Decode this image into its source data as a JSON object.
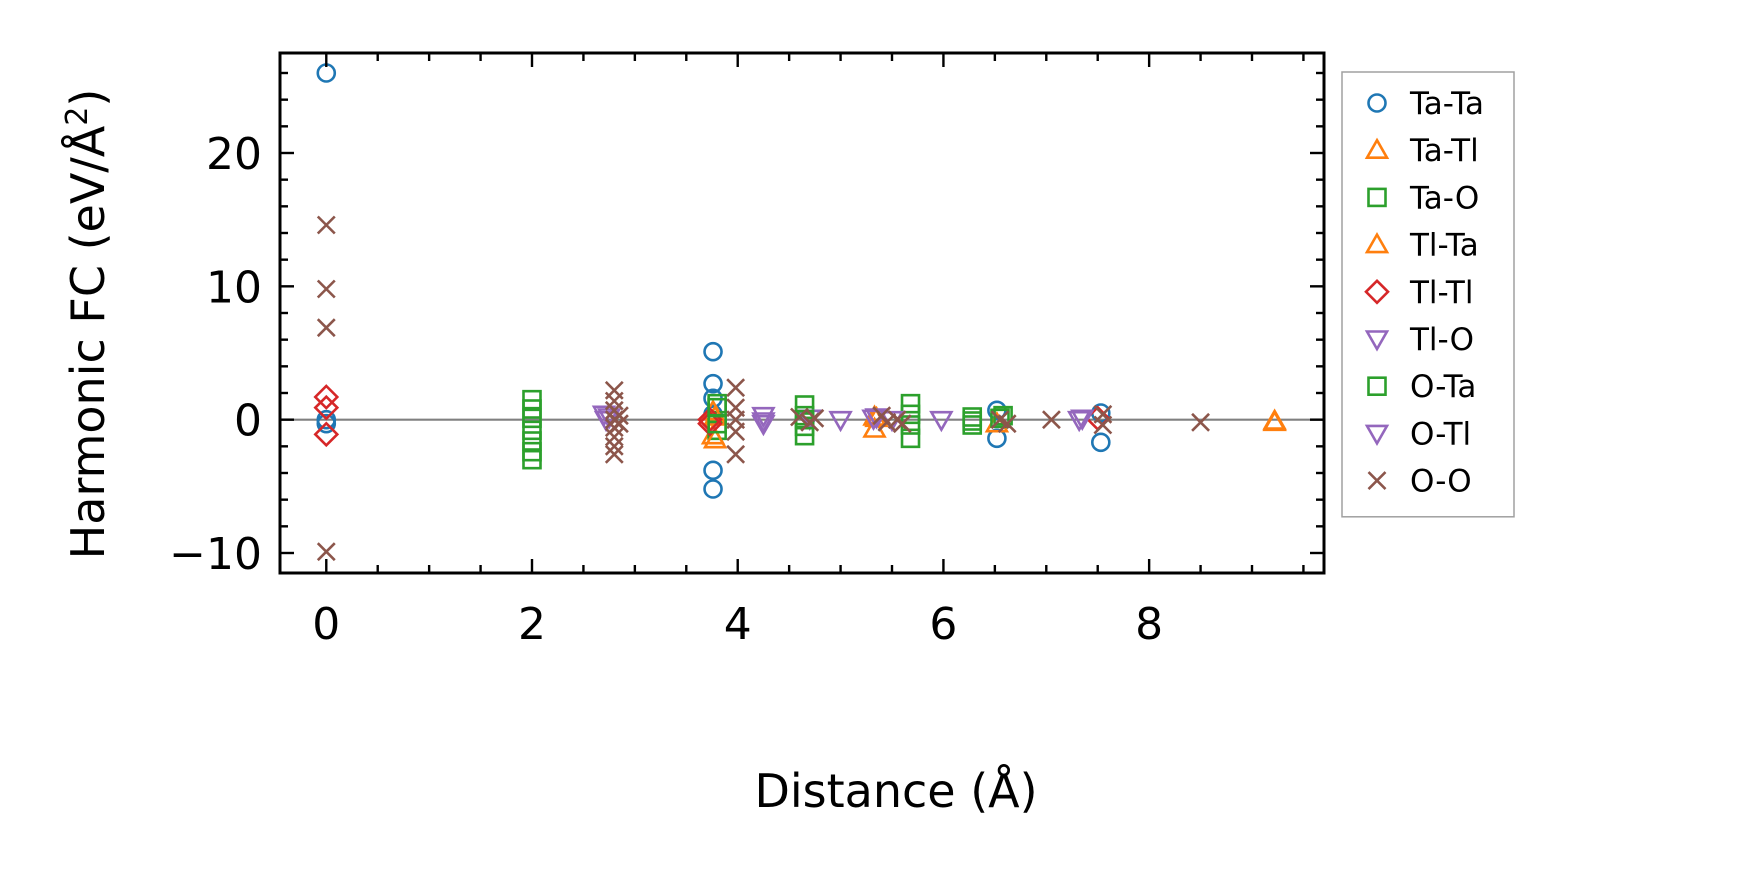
{
  "chart_data": {
    "type": "scatter",
    "title": "",
    "xlabel": "Distance (Å)",
    "ylabel_main": "Harmonic FC (eV/Å",
    "ylabel_sup": "2",
    "ylabel_close": ")",
    "xlim": [
      -0.45,
      9.7
    ],
    "ylim": [
      -11.5,
      27.5
    ],
    "xticks": [
      0,
      2,
      4,
      6,
      8
    ],
    "xtick_labels": [
      "0",
      "2",
      "4",
      "6",
      "8"
    ],
    "yticks": [
      -10,
      0,
      10,
      20
    ],
    "ytick_labels": [
      "−10",
      "0",
      "10",
      "20"
    ],
    "x_minor_step": 0.5,
    "y_minor_step": 2,
    "zero_line": true,
    "grid": false,
    "legend_position": "outside-right",
    "series": [
      {
        "name": "Ta-Ta",
        "marker": "circle",
        "color": "#1f77b4",
        "points": [
          [
            0,
            26
          ],
          [
            0,
            0
          ],
          [
            0,
            -0.3
          ],
          [
            3.76,
            5.1
          ],
          [
            3.76,
            2.7
          ],
          [
            3.76,
            1.6
          ],
          [
            3.76,
            -3.8
          ],
          [
            3.76,
            -5.2
          ],
          [
            3.76,
            0.4
          ],
          [
            6.52,
            0.7
          ],
          [
            6.52,
            -1.4
          ],
          [
            7.53,
            0.5
          ],
          [
            7.53,
            -1.7
          ]
        ]
      },
      {
        "name": "Ta-Tl",
        "marker": "triangle-up",
        "color": "#ff7f0e",
        "points": [
          [
            3.76,
            -1.2
          ],
          [
            3.76,
            0.6
          ],
          [
            5.33,
            -0.7
          ],
          [
            5.33,
            0.2
          ],
          [
            6.52,
            -0.3
          ],
          [
            9.22,
            -0.2
          ]
        ]
      },
      {
        "name": "Ta-O",
        "marker": "square",
        "color": "#2ca02c",
        "points": [
          [
            2.0,
            1.5
          ],
          [
            2.0,
            0.8
          ],
          [
            2.0,
            0.1
          ],
          [
            2.0,
            -0.8
          ],
          [
            2.0,
            -1.6
          ],
          [
            2.0,
            -2.4
          ],
          [
            2.0,
            -3.0
          ],
          [
            3.8,
            1.2
          ],
          [
            3.8,
            -0.8
          ],
          [
            4.65,
            1.1
          ],
          [
            4.65,
            0.3
          ],
          [
            4.65,
            -0.5
          ],
          [
            4.65,
            -1.2
          ],
          [
            5.68,
            1.2
          ],
          [
            5.68,
            0.4
          ],
          [
            5.68,
            -0.4
          ],
          [
            5.68,
            -1.4
          ],
          [
            6.28,
            0.2
          ],
          [
            6.28,
            -0.4
          ],
          [
            6.55,
            0.1
          ]
        ]
      },
      {
        "name": "Tl-Ta",
        "marker": "triangle-up",
        "color": "#ff7f0e",
        "points": [
          [
            3.78,
            -1.5
          ],
          [
            3.78,
            0.2
          ],
          [
            5.35,
            0.1
          ],
          [
            9.22,
            -0.1
          ]
        ]
      },
      {
        "name": "Tl-Tl",
        "marker": "diamond",
        "color": "#d62728",
        "points": [
          [
            0,
            1.7
          ],
          [
            0,
            0.9
          ],
          [
            0,
            -1.1
          ],
          [
            3.73,
            0.0
          ],
          [
            3.73,
            -0.3
          ],
          [
            7.5,
            0.1
          ]
        ]
      },
      {
        "name": "Tl-O",
        "marker": "triangle-down",
        "color": "#9467bd",
        "points": [
          [
            2.7,
            0.4
          ],
          [
            2.75,
            0.2
          ],
          [
            4.25,
            0.3
          ],
          [
            4.25,
            -0.3
          ],
          [
            4.7,
            0.1
          ],
          [
            5.0,
            0.0
          ],
          [
            5.35,
            0.2
          ],
          [
            5.5,
            0.0
          ],
          [
            5.98,
            0.0
          ],
          [
            7.32,
            0.0
          ]
        ]
      },
      {
        "name": "O-Ta",
        "marker": "square",
        "color": "#2ca02c",
        "points": [
          [
            3.8,
            0.9
          ],
          [
            3.8,
            -0.3
          ],
          [
            4.65,
            0.0
          ],
          [
            6.28,
            -0.1
          ],
          [
            6.58,
            0.3
          ]
        ]
      },
      {
        "name": "O-Tl",
        "marker": "triangle-down",
        "color": "#9467bd",
        "points": [
          [
            2.72,
            0.0
          ],
          [
            4.25,
            -0.1
          ],
          [
            5.32,
            0.1
          ],
          [
            7.35,
            0.1
          ]
        ]
      },
      {
        "name": "O-O",
        "marker": "x",
        "color": "#8c564b",
        "points": [
          [
            0,
            14.6
          ],
          [
            0,
            9.8
          ],
          [
            0,
            6.9
          ],
          [
            0,
            -9.9
          ],
          [
            2.8,
            2.2
          ],
          [
            2.8,
            1.4
          ],
          [
            2.8,
            0.7
          ],
          [
            2.8,
            0.0
          ],
          [
            2.8,
            -0.6
          ],
          [
            2.8,
            -1.3
          ],
          [
            2.8,
            -2.0
          ],
          [
            2.8,
            -2.6
          ],
          [
            2.85,
            0.3
          ],
          [
            2.85,
            -0.3
          ],
          [
            3.98,
            2.4
          ],
          [
            3.98,
            0.9
          ],
          [
            3.98,
            0.0
          ],
          [
            3.98,
            -0.9
          ],
          [
            3.98,
            -2.6
          ],
          [
            4.6,
            0.2
          ],
          [
            4.7,
            -0.2
          ],
          [
            4.75,
            0.1
          ],
          [
            5.4,
            0.3
          ],
          [
            5.45,
            -0.2
          ],
          [
            5.55,
            0.0
          ],
          [
            5.6,
            -0.3
          ],
          [
            6.55,
            0.0
          ],
          [
            6.62,
            -0.3
          ],
          [
            7.05,
            0.0
          ],
          [
            7.55,
            0.4
          ],
          [
            7.55,
            -0.4
          ],
          [
            8.5,
            -0.2
          ]
        ]
      }
    ]
  }
}
